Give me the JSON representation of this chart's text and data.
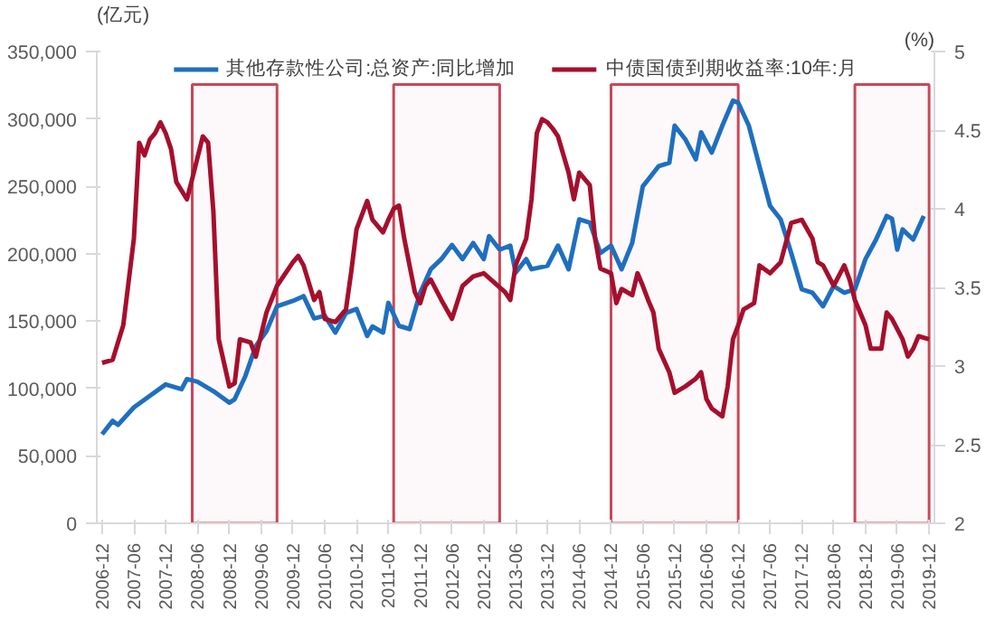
{
  "chart_data": {
    "type": "line",
    "ylabel": "(亿元)",
    "y2label": "(%)",
    "legend": "top",
    "grid": false,
    "line_style": "solid",
    "marker": "none",
    "xlim": [
      "2006-11",
      "2020-01"
    ],
    "xticks": [
      "2006-12",
      "2007-06",
      "2007-12",
      "2008-06",
      "2008-12",
      "2009-06",
      "2009-12",
      "2010-06",
      "2010-12",
      "2011-06",
      "2011-12",
      "2012-06",
      "2012-12",
      "2013-06",
      "2013-12",
      "2014-06",
      "2014-12",
      "2015-06",
      "2015-12",
      "2016-06",
      "2016-12",
      "2017-06",
      "2017-12",
      "2018-06",
      "2018-12",
      "2019-06",
      "2019-12"
    ],
    "ylim": [
      0,
      350000
    ],
    "yticks": [
      {
        "value": 0,
        "label": "0"
      },
      {
        "value": 50000,
        "label": "50,000"
      },
      {
        "value": 100000,
        "label": "100,000"
      },
      {
        "value": 150000,
        "label": "150,000"
      },
      {
        "value": 200000,
        "label": "200,000"
      },
      {
        "value": 250000,
        "label": "250,000"
      },
      {
        "value": 300000,
        "label": "300,000"
      },
      {
        "value": 350000,
        "label": "350,000"
      }
    ],
    "y2lim": [
      2,
      5
    ],
    "y2ticks": [
      2,
      2.5,
      3,
      3.5,
      4,
      4.5,
      5
    ],
    "bands": [
      {
        "axis": "x",
        "from": "2008-05",
        "to": "2009-09",
        "color": "#c8485a"
      },
      {
        "axis": "x",
        "from": "2011-07",
        "to": "2013-03",
        "color": "#c8485a"
      },
      {
        "axis": "x",
        "from": "2014-12",
        "to": "2016-12",
        "color": "#c8485a"
      },
      {
        "axis": "x",
        "from": "2018-10",
        "to": "2019-12",
        "color": "#c8485a"
      }
    ],
    "series": [
      {
        "name": "其他存款性公司:总资产:同比增加",
        "color": "#1f6fbf",
        "x": [
          "2006-12",
          "2007-02",
          "2007-03",
          "2007-06",
          "2007-09",
          "2007-12",
          "2008-03",
          "2008-04",
          "2008-06",
          "2008-09",
          "2008-12",
          "2009-01",
          "2009-03",
          "2009-05",
          "2009-07",
          "2009-09",
          "2009-12",
          "2010-02",
          "2010-04",
          "2010-06",
          "2010-08",
          "2010-10",
          "2010-12",
          "2011-02",
          "2011-03",
          "2011-05",
          "2011-06",
          "2011-08",
          "2011-10",
          "2011-12",
          "2012-02",
          "2012-04",
          "2012-06",
          "2012-08",
          "2012-10",
          "2012-12",
          "2013-01",
          "2013-03",
          "2013-05",
          "2013-06",
          "2013-08",
          "2013-09",
          "2013-12",
          "2014-02",
          "2014-04",
          "2014-06",
          "2014-08",
          "2014-10",
          "2014-12",
          "2015-02",
          "2015-04",
          "2015-06",
          "2015-07",
          "2015-09",
          "2015-11",
          "2015-12",
          "2016-02",
          "2016-04",
          "2016-05",
          "2016-07",
          "2016-09",
          "2016-11",
          "2016-12",
          "2017-02",
          "2017-04",
          "2017-06",
          "2017-08",
          "2017-10",
          "2017-12",
          "2018-02",
          "2018-04",
          "2018-06",
          "2018-08",
          "2018-10",
          "2018-12",
          "2019-02",
          "2019-04",
          "2019-05",
          "2019-06",
          "2019-07",
          "2019-09",
          "2019-11"
        ],
        "values": [
          66000,
          76000,
          73000,
          86000,
          94500,
          103000,
          99500,
          107000,
          105000,
          98000,
          89500,
          92000,
          109000,
          131500,
          142500,
          161000,
          165000,
          168500,
          152000,
          154000,
          141500,
          156000,
          159000,
          139000,
          146000,
          141500,
          163500,
          146500,
          144000,
          171000,
          188500,
          196000,
          206500,
          196000,
          208000,
          196000,
          213000,
          203000,
          206000,
          186000,
          196000,
          188500,
          191000,
          206000,
          188500,
          225500,
          223000,
          200500,
          206000,
          188500,
          208000,
          250000,
          255000,
          265000,
          267500,
          295000,
          285000,
          270000,
          290000,
          275000,
          295000,
          313500,
          312000,
          295000,
          265000,
          235500,
          225500,
          200500,
          173500,
          171000,
          161000,
          176000,
          171000,
          173500,
          196000,
          210500,
          228000,
          226000,
          203000,
          218000,
          210500,
          228000
        ]
      },
      {
        "name": "中债国债到期收益率:10年:月",
        "color": "#a50f2d",
        "axis": "y2",
        "x": [
          "2006-12",
          "2007-02",
          "2007-04",
          "2007-06",
          "2007-07",
          "2007-08",
          "2007-09",
          "2007-10",
          "2007-11",
          "2007-12",
          "2008-01",
          "2008-02",
          "2008-04",
          "2008-05",
          "2008-07",
          "2008-08",
          "2008-09",
          "2008-10",
          "2008-12",
          "2009-01",
          "2009-02",
          "2009-04",
          "2009-05",
          "2009-07",
          "2009-09",
          "2009-12",
          "2010-01",
          "2010-02",
          "2010-04",
          "2010-05",
          "2010-06",
          "2010-08",
          "2010-10",
          "2010-11",
          "2010-12",
          "2011-02",
          "2011-03",
          "2011-05",
          "2011-06",
          "2011-07",
          "2011-08",
          "2011-09",
          "2011-10",
          "2011-11",
          "2011-12",
          "2012-01",
          "2012-02",
          "2012-04",
          "2012-06",
          "2012-08",
          "2012-10",
          "2012-12",
          "2013-04",
          "2013-05",
          "2013-06",
          "2013-08",
          "2013-09",
          "2013-10",
          "2013-11",
          "2013-12",
          "2014-01",
          "2014-02",
          "2014-04",
          "2014-05",
          "2014-06",
          "2014-08",
          "2014-09",
          "2014-10",
          "2014-12",
          "2015-01",
          "2015-02",
          "2015-04",
          "2015-05",
          "2015-06",
          "2015-07",
          "2015-08",
          "2015-09",
          "2015-11",
          "2015-12",
          "2016-02",
          "2016-04",
          "2016-05",
          "2016-06",
          "2016-07",
          "2016-09",
          "2016-10",
          "2016-11",
          "2016-12",
          "2017-01",
          "2017-03",
          "2017-04",
          "2017-06",
          "2017-08",
          "2017-10",
          "2017-12",
          "2018-02",
          "2018-03",
          "2018-04",
          "2018-06",
          "2018-08",
          "2018-09",
          "2018-10",
          "2018-12",
          "2019-01",
          "2019-03",
          "2019-04",
          "2019-05",
          "2019-07",
          "2019-08",
          "2019-09",
          "2019-10",
          "2019-12"
        ],
        "values": [
          3.02,
          3.04,
          3.26,
          3.81,
          4.42,
          4.34,
          4.44,
          4.48,
          4.55,
          4.48,
          4.38,
          4.17,
          4.06,
          4.19,
          4.46,
          4.42,
          3.98,
          3.17,
          2.87,
          2.89,
          3.17,
          3.15,
          3.06,
          3.34,
          3.51,
          3.66,
          3.7,
          3.64,
          3.42,
          3.47,
          3.3,
          3.28,
          3.36,
          3.6,
          3.87,
          4.05,
          3.93,
          3.85,
          3.93,
          4.0,
          4.02,
          3.81,
          3.64,
          3.47,
          3.4,
          3.51,
          3.55,
          3.42,
          3.3,
          3.51,
          3.57,
          3.59,
          3.47,
          3.42,
          3.64,
          3.81,
          4.06,
          4.48,
          4.57,
          4.55,
          4.51,
          4.46,
          4.23,
          4.06,
          4.23,
          4.15,
          3.81,
          3.62,
          3.59,
          3.4,
          3.49,
          3.45,
          3.59,
          3.51,
          3.42,
          3.34,
          3.11,
          2.96,
          2.83,
          2.87,
          2.92,
          2.96,
          2.79,
          2.73,
          2.68,
          2.87,
          3.17,
          3.26,
          3.36,
          3.4,
          3.64,
          3.59,
          3.66,
          3.91,
          3.93,
          3.81,
          3.66,
          3.64,
          3.51,
          3.64,
          3.55,
          3.42,
          3.26,
          3.11,
          3.11,
          3.34,
          3.3,
          3.17,
          3.06,
          3.11,
          3.19,
          3.17
        ]
      }
    ]
  }
}
